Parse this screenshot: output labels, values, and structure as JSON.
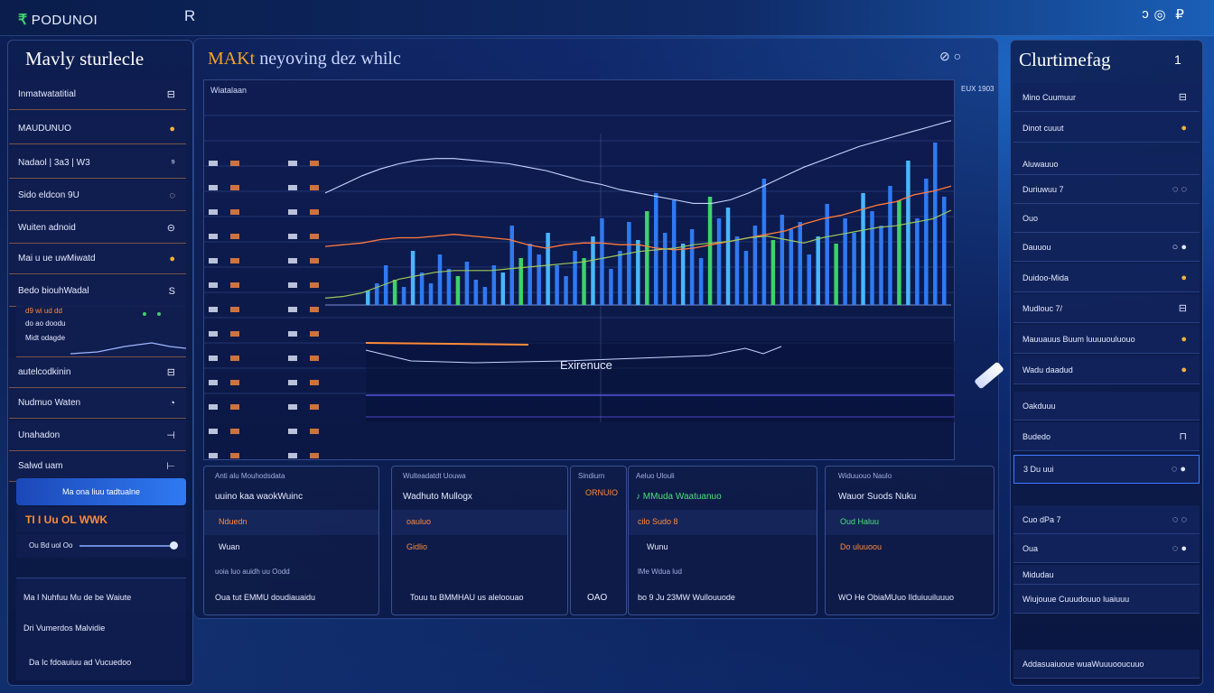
{
  "topbar": {
    "logo_mark": "₹",
    "logo_text": "PODUNOI",
    "left_icon": "R",
    "controls": [
      "ↄ",
      "◎",
      "₽"
    ]
  },
  "left": {
    "title": "Mavly sturlecle",
    "rows": [
      {
        "label": "Inmatwatatitial",
        "icon": "⊟"
      },
      {
        "label": "MAUDUNUO",
        "icon": "●",
        "gold": true
      },
      {
        "label": "Nadaol | 3a3 | W3",
        "icon": "⁹"
      },
      {
        "label": "Sido eldcon 9U",
        "icon": "◌"
      },
      {
        "label": "Wuiten adnoid",
        "icon": "⊝"
      },
      {
        "label": "Mai u ue uwMiwatd",
        "icon": "●",
        "gold": true
      },
      {
        "label": "Bedo biouhWadal",
        "icon": "S"
      }
    ],
    "mini_chart_lines": [
      "d9 wi ud dd",
      "do ao doodu",
      "Midt odagde"
    ],
    "rows2": [
      {
        "label": "autelcodkinin",
        "icon": "⊟"
      },
      {
        "label": "Nudmuo Waten",
        "icon": "◔"
      },
      {
        "label": "Unahadon",
        "icon": "⊣"
      },
      {
        "label": "Salwd uam",
        "icon": "⊢"
      }
    ],
    "active_row": "Ma ona liuu tadtualne",
    "warn_row": "TI I Uu   OL WWK",
    "slider_label": "Ou Bd uol Oo",
    "footer_rows": [
      "Ma I Nuhfuu Mu de be Waiute",
      "Dri Vumerdos Malvidie",
      "Da Ic fdoauiuu ad Vucuedoo"
    ]
  },
  "main": {
    "title_accent": "MAKt",
    "title_rest": " neyoving dez whilc",
    "corner_label": "⊘ ○",
    "chart_tab": "Wiatalaan",
    "chart_badge": "EUX 1903",
    "overlay_label": "Exirenuce",
    "cards": [
      {
        "small": "Anti alu Mouhodsdata",
        "title": "uuino kaa waokWuinc",
        "l1": "Nduedn",
        "l2": "Wuan",
        "foot_small": "uoia luo auidh uu Oodd",
        "foot": "Oua tut EMMU doudiauaidu"
      },
      {
        "small": "Wulteadatdt Uouwa",
        "title": "Wadhuto Mullogx",
        "l1": "oauluo",
        "l2": "Gidlio",
        "foot_small": "",
        "foot": "Touu tu BMMHAU us aleloouao"
      },
      {
        "small": "Sindiurn",
        "title": "",
        "l1": "ORNUIO",
        "l2": "",
        "foot_small": "",
        "foot": "OAO"
      },
      {
        "small": "Aeluo  Ulouli",
        "title": "♪ MMuda Waatuanuo",
        "l1": "cilo Sudo 8",
        "l2": "Wunu",
        "foot_small": "lMe Wdua lud",
        "foot": "bo 9 Ju  23MW  Wullouuode"
      },
      {
        "small": "Widuuouo Naulo",
        "title": "Wauor Suods Nuku",
        "l1": "Oud Haluu",
        "l2": "Do uluuoou",
        "foot_small": "",
        "foot": "WO He ObiaMUuo Ilduiuuiluuuo"
      }
    ]
  },
  "right": {
    "title": "Clurtimefag",
    "title_extra": "1",
    "rows": [
      {
        "label": "Mino Cuumuur",
        "icon": "⊟"
      },
      {
        "label": "Dinot cuuut",
        "icon": "●",
        "gold": true
      },
      {
        "label": "Aluwauuo",
        "icon": ""
      },
      {
        "label": "Duriuwuu 7",
        "icon": "◌ ◌"
      },
      {
        "label": "Ouo",
        "icon": ""
      },
      {
        "label": "Dauuou",
        "icon": "○ ●"
      },
      {
        "label": "Duidoo-Mida",
        "icon": "●",
        "gold": true
      },
      {
        "label": "Mudlouc 7/",
        "icon": "⊟"
      },
      {
        "label": "Mauuauus Buum   luuuuouluouo",
        "icon": "●",
        "gold": true
      },
      {
        "label": "Wadu daadud",
        "icon": "●",
        "gold": true
      }
    ],
    "rows2": [
      {
        "label": "Oakduuu",
        "icon": ""
      },
      {
        "label": "Budedo",
        "icon": "⊓"
      },
      {
        "label": "3 Du uui",
        "icon": "◌ ●"
      },
      {
        "label": "Cuo dPa 7",
        "icon": "◌ ◌"
      },
      {
        "label": "Oua",
        "icon": "◌ ●"
      },
      {
        "label": "Midudau",
        "icon": ""
      },
      {
        "label": "Wiujouue Cuuudouuo    luaiuuu",
        "icon": ""
      },
      {
        "label": "Addasuaiuoue wuaWuuuooucuuo",
        "icon": ""
      }
    ]
  },
  "chart_data": {
    "type": "bar",
    "bars": [
      8,
      12,
      22,
      14,
      10,
      30,
      18,
      12,
      28,
      20,
      16,
      24,
      14,
      10,
      22,
      18,
      44,
      26,
      34,
      28,
      40,
      22,
      16,
      30,
      26,
      38,
      48,
      20,
      30,
      46,
      36,
      52,
      62,
      40,
      58,
      34,
      42,
      26,
      60,
      48,
      54,
      38,
      30,
      44,
      70,
      36,
      50,
      42,
      46,
      28,
      38,
      56,
      34,
      48,
      40,
      62,
      52,
      44,
      66,
      58,
      80,
      48,
      70,
      90,
      60
    ],
    "line_orange": [
      68,
      70,
      72,
      76,
      78,
      78,
      80,
      82,
      80,
      78,
      76,
      70,
      66,
      70,
      72,
      72,
      70,
      70,
      66,
      64,
      66,
      70,
      74,
      78,
      82,
      86,
      94,
      100,
      104,
      110,
      116,
      120,
      128,
      132,
      138
    ],
    "line_green": [
      8,
      10,
      14,
      22,
      30,
      34,
      38,
      40,
      40,
      40,
      42,
      44,
      46,
      48,
      50,
      54,
      58,
      62,
      64,
      66,
      70,
      72,
      74,
      78,
      80,
      76,
      72,
      78,
      82,
      86,
      90,
      92,
      96,
      100,
      110
    ],
    "line_white": [
      130,
      140,
      150,
      158,
      164,
      168,
      170,
      170,
      168,
      166,
      164,
      160,
      156,
      150,
      144,
      140,
      134,
      130,
      126,
      122,
      118,
      118,
      122,
      130,
      140,
      150,
      160,
      168,
      176,
      184,
      190,
      196,
      202,
      208,
      214
    ]
  }
}
